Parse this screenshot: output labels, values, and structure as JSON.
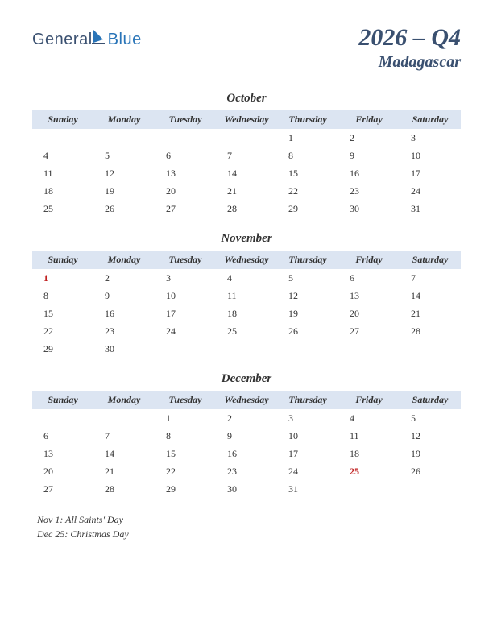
{
  "logo": {
    "text1": "General",
    "text2": "Blue"
  },
  "header": {
    "quarter": "2026 – Q4",
    "country": "Madagascar"
  },
  "dayNames": [
    "Sunday",
    "Monday",
    "Tuesday",
    "Wednesday",
    "Thursday",
    "Friday",
    "Saturday"
  ],
  "months": [
    {
      "name": "October",
      "weeks": [
        [
          "",
          "",
          "",
          "",
          "1",
          "2",
          "3"
        ],
        [
          "4",
          "5",
          "6",
          "7",
          "8",
          "9",
          "10"
        ],
        [
          "11",
          "12",
          "13",
          "14",
          "15",
          "16",
          "17"
        ],
        [
          "18",
          "19",
          "20",
          "21",
          "22",
          "23",
          "24"
        ],
        [
          "25",
          "26",
          "27",
          "28",
          "29",
          "30",
          "31"
        ]
      ],
      "holidays": []
    },
    {
      "name": "November",
      "weeks": [
        [
          "1",
          "2",
          "3",
          "4",
          "5",
          "6",
          "7"
        ],
        [
          "8",
          "9",
          "10",
          "11",
          "12",
          "13",
          "14"
        ],
        [
          "15",
          "16",
          "17",
          "18",
          "19",
          "20",
          "21"
        ],
        [
          "22",
          "23",
          "24",
          "25",
          "26",
          "27",
          "28"
        ],
        [
          "29",
          "30",
          "",
          "",
          "",
          "",
          ""
        ]
      ],
      "holidays": [
        "1"
      ]
    },
    {
      "name": "December",
      "weeks": [
        [
          "",
          "",
          "1",
          "2",
          "3",
          "4",
          "5"
        ],
        [
          "6",
          "7",
          "8",
          "9",
          "10",
          "11",
          "12"
        ],
        [
          "13",
          "14",
          "15",
          "16",
          "17",
          "18",
          "19"
        ],
        [
          "20",
          "21",
          "22",
          "23",
          "24",
          "25",
          "26"
        ],
        [
          "27",
          "28",
          "29",
          "30",
          "31",
          "",
          ""
        ]
      ],
      "holidays": [
        "25"
      ]
    }
  ],
  "holidayList": [
    "Nov 1: All Saints' Day",
    "Dec 25: Christmas Day"
  ],
  "colors": {
    "headerBg": "#dce5f2",
    "titleColor": "#3a5070",
    "logoBlue": "#2a75b8",
    "holidayColor": "#c02020",
    "textColor": "#333333",
    "background": "#ffffff"
  }
}
